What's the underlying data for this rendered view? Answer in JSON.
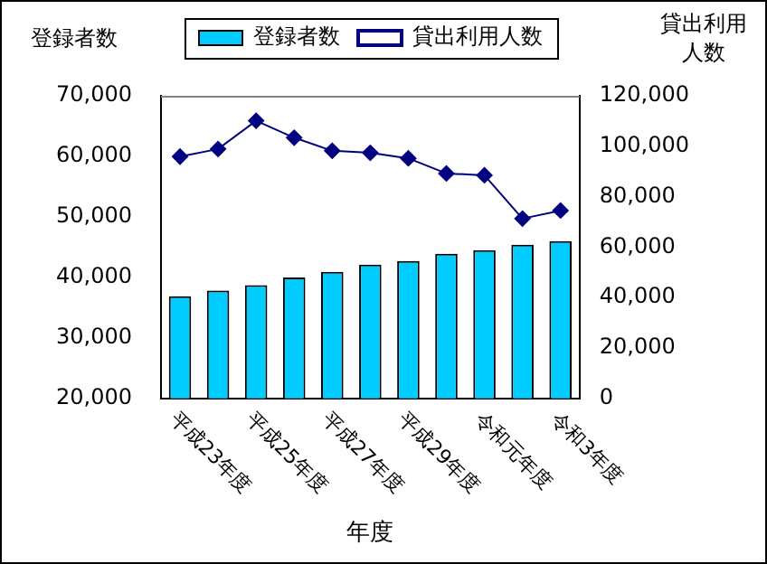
{
  "chart_data": {
    "type": "bar",
    "xlabel": "年度",
    "ylabel": "登録者数",
    "y2label": "貸出利用人数",
    "categories": [
      "平成23年度",
      null,
      "平成25年度",
      null,
      "平成27年度",
      null,
      "平成29年度",
      null,
      "令和元年度",
      null,
      "令和3年度"
    ],
    "series": [
      {
        "name": "登録者数",
        "color": "#00ccff",
        "values": [
          36900,
          37800,
          38700,
          40000,
          40900,
          42100,
          42700,
          43900,
          44500,
          45400,
          46000
        ]
      },
      {
        "name": "貸出利用人数",
        "type": "line",
        "axis": "y2",
        "color": "#000080",
        "marker": "diamond",
        "values": [
          95900,
          98900,
          110100,
          103400,
          98200,
          97400,
          95200,
          89200,
          88500,
          71300,
          74500
        ]
      }
    ],
    "ylim": [
      20000,
      70000
    ],
    "yticks": [
      {
        "value": 20000,
        "label": "20,000"
      },
      {
        "value": 30000,
        "label": "30,000"
      },
      {
        "value": 40000,
        "label": "40,000"
      },
      {
        "value": 50000,
        "label": "50,000"
      },
      {
        "value": 60000,
        "label": "60,000"
      },
      {
        "value": 70000,
        "label": "70,000"
      }
    ],
    "y2lim": [
      0,
      120000
    ],
    "y2ticks": [
      0,
      {
        "value": 20000,
        "label": "20,000"
      },
      {
        "value": 40000,
        "label": "40,000"
      },
      {
        "value": 60000,
        "label": "60,000"
      },
      {
        "value": 80000,
        "label": "80,000"
      },
      {
        "value": 100000,
        "label": "100,000"
      },
      {
        "value": 120000,
        "label": "120,000"
      }
    ],
    "legend": "top",
    "grid": false
  }
}
